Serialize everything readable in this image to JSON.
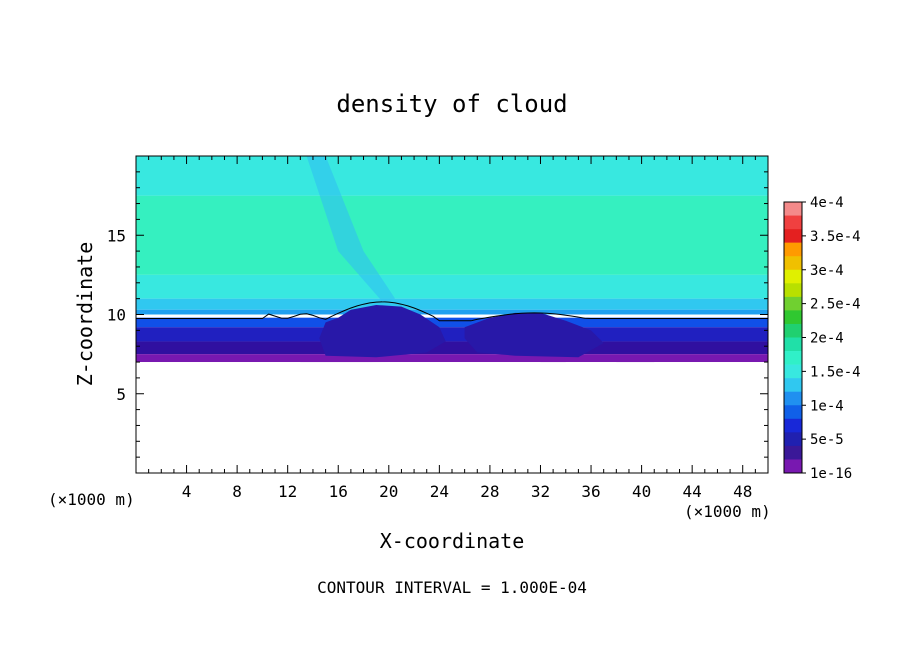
{
  "chart_data": {
    "type": "heatmap",
    "title": "density of cloud",
    "xlabel": "X-coordinate",
    "ylabel": "Z-coordinate",
    "x_unit_left": "(×1000 m)",
    "x_unit_right": "(×1000 m)",
    "footer": "CONTOUR INTERVAL = 1.000E-04",
    "xlim": [
      0,
      50
    ],
    "ylim": [
      0,
      20
    ],
    "xticks": [
      4,
      8,
      12,
      16,
      20,
      24,
      28,
      32,
      36,
      40,
      44,
      48
    ],
    "yticks": [
      5,
      10,
      15
    ],
    "colorbar": {
      "labels": [
        "4e-4",
        "3.5e-4",
        "3e-4",
        "2.5e-4",
        "2e-4",
        "1.5e-4",
        "1e-4",
        "5e-5",
        "1e-16"
      ],
      "colors": [
        "#f48a8a",
        "#f04040",
        "#e42020",
        "#ff9a00",
        "#f0c000",
        "#e0f000",
        "#b8e000",
        "#70d030",
        "#30c830",
        "#20d070",
        "#20e0a8",
        "#30f0c8",
        "#38e8e0",
        "#30c8f0",
        "#2090f0",
        "#1060e8",
        "#1828d8",
        "#2020b0",
        "#3a1898",
        "#7818b0"
      ]
    },
    "layers": [
      {
        "level": "1.3e-4",
        "color": "#35f0c0",
        "z_range": [
          12.5,
          17.5
        ]
      },
      {
        "level": "1.2e-4",
        "color": "#38e8e0",
        "z_range": [
          11,
          12.5
        ]
      },
      {
        "level": "1.2e-4",
        "color": "#38e8e0",
        "z_range": [
          17.5,
          20
        ]
      },
      {
        "level": "1e-4",
        "color": "#30c8f0",
        "z_range": [
          10.3,
          11
        ]
      },
      {
        "level": "8e-5",
        "color": "#20a0f0",
        "z_range": [
          10,
          10.3
        ]
      },
      {
        "level": "5e-5",
        "color": "#1050e8",
        "z_range": [
          9.2,
          9.8
        ]
      },
      {
        "level": "3e-5",
        "color": "#2020c0",
        "z_range": [
          8.3,
          9.2
        ]
      },
      {
        "level": "1e-5",
        "color": "#3010a0",
        "z_range": [
          7.5,
          8.3
        ]
      },
      {
        "level": "1e-16",
        "color": "#7818b0",
        "z_range": [
          7.0,
          7.5
        ]
      }
    ]
  }
}
